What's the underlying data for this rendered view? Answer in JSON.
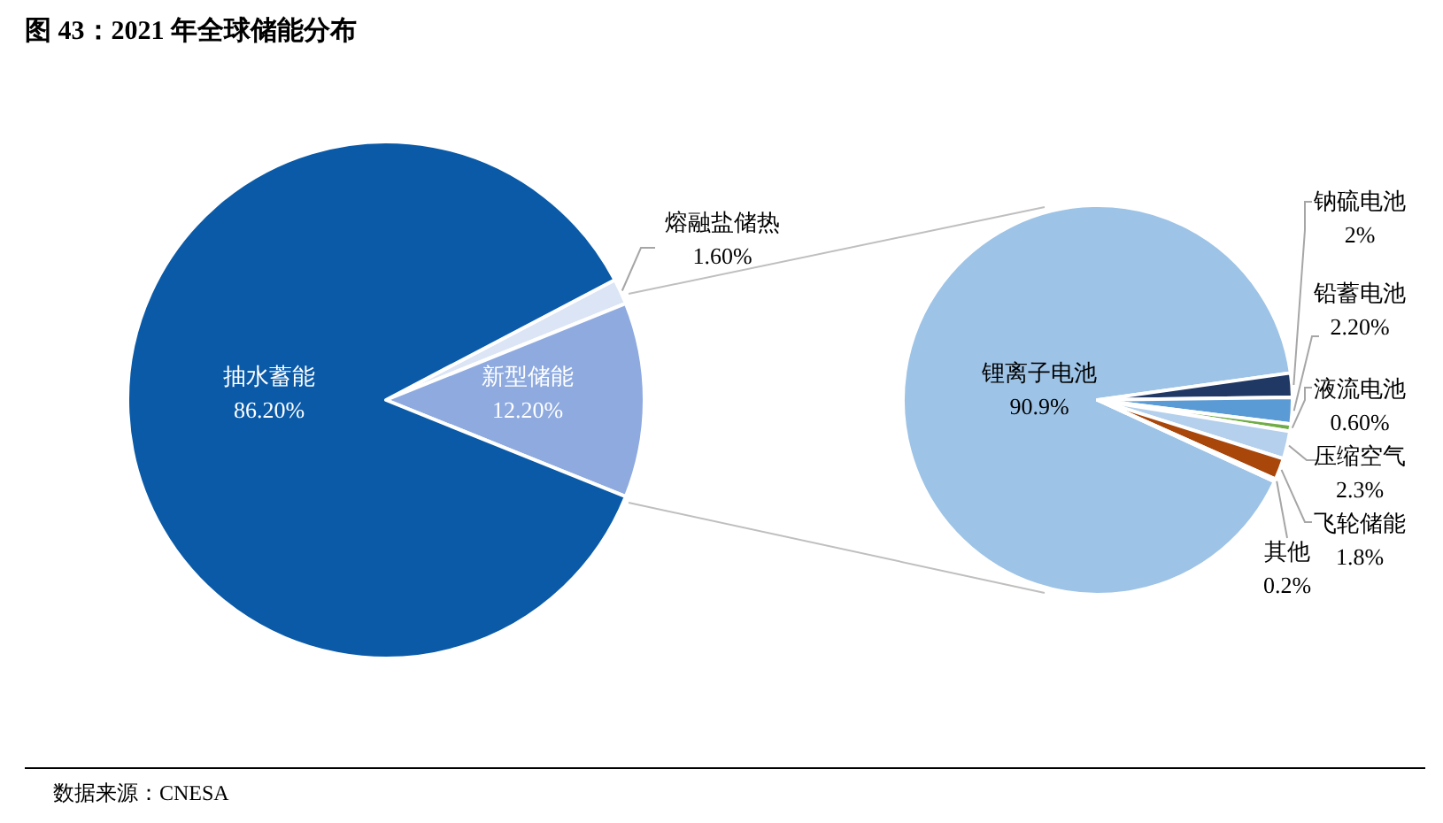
{
  "chart_data": [
    {
      "type": "pie",
      "title": "图 43：2021 年全球储能分布",
      "categories": [
        "熔融盐储热",
        "新型储能",
        "抽水蓄能"
      ],
      "values": [
        1.6,
        12.2,
        86.2
      ],
      "value_labels": [
        "1.60%",
        "12.20%",
        "86.20%"
      ],
      "colors": [
        "#dce5f5",
        "#8eaadf",
        "#0a5aa8"
      ],
      "annotations": [
        "数据来源：CNESA"
      ]
    },
    {
      "type": "pie",
      "categories": [
        "锂离子电池",
        "钠硫电池",
        "铅蓄电池",
        "液流电池",
        "压缩空气",
        "飞轮储能",
        "其他"
      ],
      "values": [
        90.9,
        2,
        2.2,
        0.6,
        2.3,
        1.8,
        0.2
      ],
      "value_labels": [
        "90.9%",
        "2%",
        "2.20%",
        "0.60%",
        "2.3%",
        "1.8%",
        "0.2%"
      ],
      "colors": [
        "#9dc3e6",
        "#1f3864",
        "#5b9bd5",
        "#70ad47",
        "#b4d0ec",
        "#a9460a",
        "#7f7f7f"
      ]
    }
  ]
}
